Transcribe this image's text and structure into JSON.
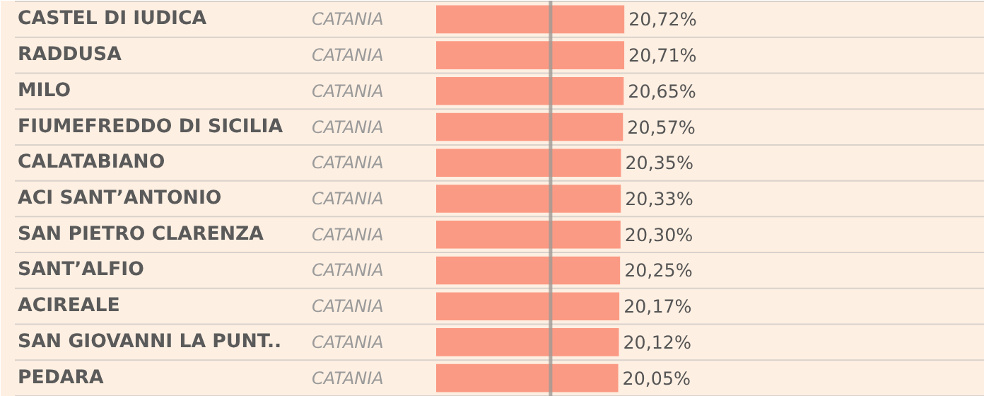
{
  "chart_data": {
    "type": "bar",
    "orientation": "horizontal",
    "categories": [
      "CASTEL DI IUDICA",
      "RADDUSA",
      "MILO",
      "FIUMEFREDDO DI SICILIA",
      "CALATABIANO",
      "ACI SANT’ANTONIO",
      "SAN PIETRO CLARENZA",
      "SANT’ALFIO",
      "ACIREALE",
      "SAN GIOVANNI LA PUNT..",
      "PEDARA"
    ],
    "values": [
      20.72,
      20.71,
      20.65,
      20.57,
      20.35,
      20.33,
      20.3,
      20.25,
      20.17,
      20.12,
      20.05
    ],
    "value_labels": [
      "20,72%",
      "20,71%",
      "20,65%",
      "20,57%",
      "20,35%",
      "20,33%",
      "20,30%",
      "20,25%",
      "20,17%",
      "20,12%",
      "20,05%"
    ],
    "color": "#fb9a84",
    "xlim": [
      0,
      60.4
    ],
    "tick_labels": "y",
    "ref_lines": [
      {
        "axis": "x",
        "value": 12.6,
        "color": "#9e9a96"
      }
    ],
    "annotations": [
      "CATANIA",
      "CATANIA",
      "CATANIA",
      "CATANIA",
      "CATANIA",
      "CATANIA",
      "CATANIA",
      "CATANIA",
      "CATANIA",
      "CATANIA",
      "CATANIA"
    ]
  }
}
